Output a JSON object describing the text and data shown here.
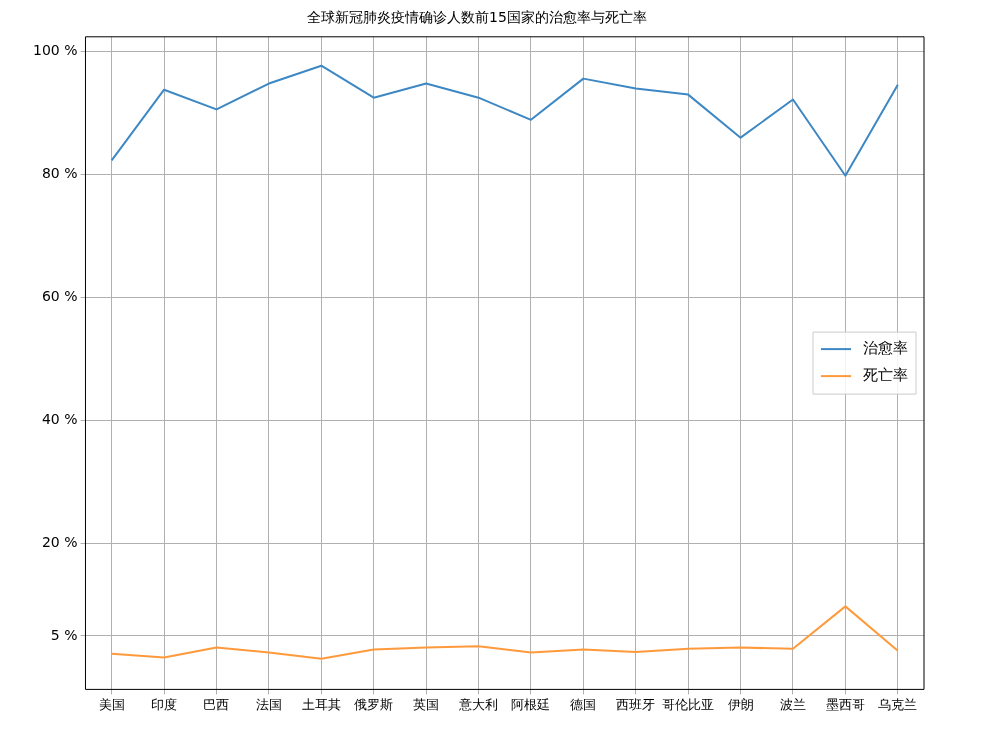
{
  "chart_data": {
    "type": "line",
    "title": "全球新冠肺炎疫情确诊人数前15国家的治愈率与死亡率",
    "categories": [
      "美国",
      "印度",
      "巴西",
      "法国",
      "土耳其",
      "俄罗斯",
      "英国",
      "意大利",
      "阿根廷",
      "德国",
      "西班牙",
      "哥伦比亚",
      "伊朗",
      "波兰",
      "墨西哥",
      "乌克兰"
    ],
    "series": [
      {
        "name": "治愈率",
        "color": "#3d88c4",
        "values": [
          82.3,
          93.8,
          90.6,
          94.8,
          97.7,
          92.5,
          94.8,
          92.5,
          88.9,
          95.6,
          94.0,
          93.0,
          86.0,
          92.2,
          79.8,
          94.6
        ]
      },
      {
        "name": "死亡率",
        "color": "#ff9a3c",
        "values": [
          2.1,
          1.5,
          3.1,
          2.3,
          1.3,
          2.8,
          3.1,
          3.3,
          2.3,
          2.8,
          2.4,
          2.9,
          3.1,
          2.9,
          9.8,
          2.6
        ]
      }
    ],
    "ylim": [
      -3.7,
      102.4
    ],
    "yticks": [
      {
        "value": 5,
        "label": "5 %"
      },
      {
        "value": 20,
        "label": "20 %"
      },
      {
        "value": 40,
        "label": "40 %"
      },
      {
        "value": 60,
        "label": "60 %"
      },
      {
        "value": 80,
        "label": "80 %"
      },
      {
        "value": 100,
        "label": "100 %"
      }
    ],
    "grid": true,
    "legend": "right",
    "marker": "none",
    "line_style": "solid"
  }
}
